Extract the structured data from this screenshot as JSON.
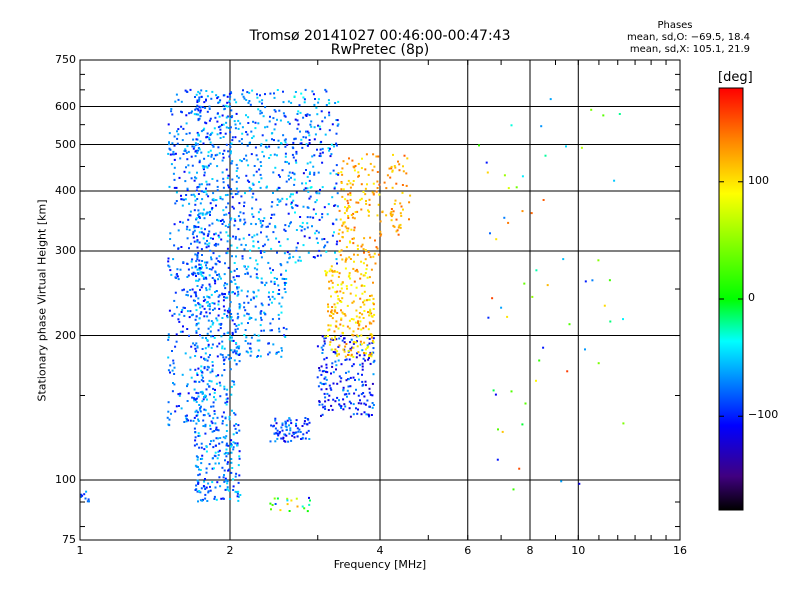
{
  "header": {
    "title_line1": "Tromsø 20141027 00:46:00-00:47:43",
    "title_line2": "RwPretec (8p)"
  },
  "stats": {
    "heading": "Phases",
    "line_o": "mean, sd,O: −69.5, 18.4",
    "line_x": "mean, sd,X: 105.1, 21.9"
  },
  "colorbar": {
    "unit": "[deg]",
    "ticks": [
      {
        "value": 100,
        "label": "100"
      },
      {
        "value": 0,
        "label": "0"
      },
      {
        "value": -100,
        "label": "−100"
      }
    ],
    "range": [
      -180,
      180
    ]
  },
  "chart_data": {
    "type": "scatter",
    "xlabel": "Frequency [MHz]",
    "ylabel": "Stationary phase Virtual Height [km]",
    "x_scale": "log",
    "y_scale": "log",
    "xlim": [
      1,
      16
    ],
    "ylim": [
      75,
      750
    ],
    "x_ticks": [
      {
        "v": 1,
        "label": "1"
      },
      {
        "v": 2,
        "label": "2"
      },
      {
        "v": 4,
        "label": "4"
      },
      {
        "v": 6,
        "label": "6"
      },
      {
        "v": 8,
        "label": "8"
      },
      {
        "v": 10,
        "label": "10"
      },
      {
        "v": 16,
        "label": "16"
      }
    ],
    "x_gridlines": [
      2,
      4,
      6,
      8,
      10
    ],
    "y_ticks": [
      {
        "v": 75,
        "label": "75"
      },
      {
        "v": 100,
        "label": "100"
      },
      {
        "v": 200,
        "label": "200"
      },
      {
        "v": 300,
        "label": "300"
      },
      {
        "v": 400,
        "label": "400"
      },
      {
        "v": 500,
        "label": "500"
      },
      {
        "v": 600,
        "label": "600"
      },
      {
        "v": 750,
        "label": "750"
      }
    ],
    "y_gridlines": [
      100,
      200,
      300,
      400,
      500,
      600
    ],
    "color_field": "phase (deg)",
    "trace_groups": [
      {
        "f_range": [
          1.7,
          2.1
        ],
        "h_range": [
          90,
          650
        ],
        "phase_range": [
          -110,
          -40
        ],
        "count": 900
      },
      {
        "f_range": [
          1.5,
          1.75
        ],
        "h_range": [
          130,
          650
        ],
        "phase_range": [
          -110,
          -50
        ],
        "count": 300
      },
      {
        "f_range": [
          2.1,
          2.6
        ],
        "h_range": [
          180,
          650
        ],
        "phase_range": [
          -100,
          -40
        ],
        "count": 350
      },
      {
        "f_range": [
          2.6,
          3.3
        ],
        "h_range": [
          280,
          650
        ],
        "phase_range": [
          -120,
          -30
        ],
        "count": 250
      },
      {
        "f_range": [
          2.4,
          2.9
        ],
        "h_range": [
          120,
          135
        ],
        "phase_range": [
          -120,
          -60
        ],
        "count": 80
      },
      {
        "f_range": [
          3.0,
          3.9
        ],
        "h_range": [
          135,
          200
        ],
        "phase_range": [
          -130,
          -60
        ],
        "count": 200
      },
      {
        "f_range": [
          3.1,
          3.9
        ],
        "h_range": [
          180,
          280
        ],
        "phase_range": [
          80,
          140
        ],
        "count": 220
      },
      {
        "f_range": [
          3.3,
          4.0
        ],
        "h_range": [
          280,
          480
        ],
        "phase_range": [
          90,
          150
        ],
        "count": 150
      },
      {
        "f_range": [
          4.0,
          4.6
        ],
        "h_range": [
          320,
          480
        ],
        "phase_range": [
          100,
          150
        ],
        "count": 60
      },
      {
        "f_range": [
          1.0,
          1.1
        ],
        "h_range": [
          90,
          95
        ],
        "phase_range": [
          -110,
          -60
        ],
        "count": 10
      },
      {
        "f_range": [
          2.4,
          2.9
        ],
        "h_range": [
          86,
          92
        ],
        "phase_range": [
          -120,
          150
        ],
        "count": 20
      },
      {
        "f_range": [
          6.3,
          12.5
        ],
        "h_range": [
          95,
          650
        ],
        "phase_range": [
          -120,
          160
        ],
        "count": 60
      }
    ]
  }
}
